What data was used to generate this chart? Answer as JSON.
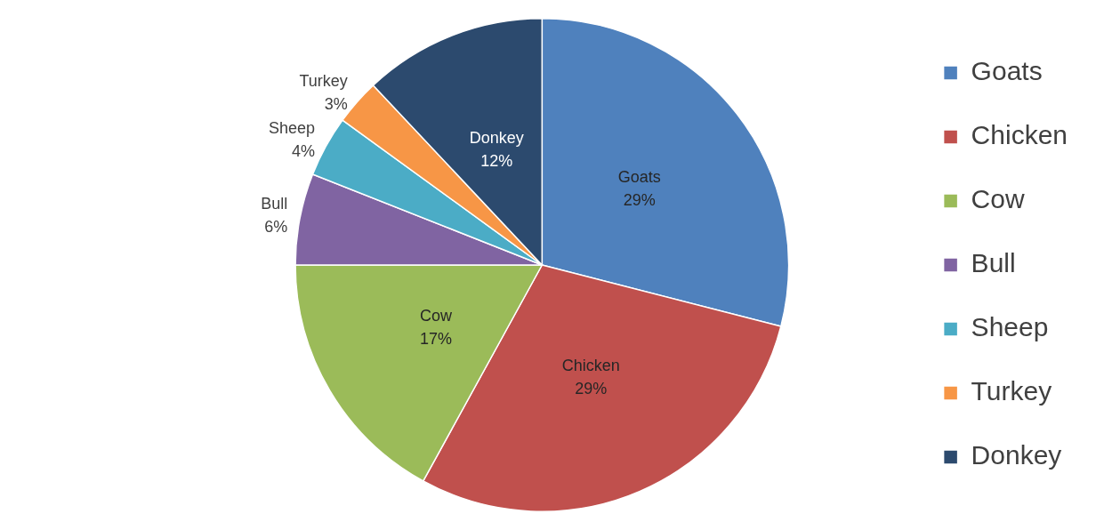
{
  "chart_data": {
    "type": "pie",
    "categories": [
      "Goats",
      "Chicken",
      "Cow",
      "Bull",
      "Sheep",
      "Turkey",
      "Donkey"
    ],
    "values": [
      29,
      29,
      17,
      6,
      4,
      3,
      12
    ],
    "value_labels": [
      "29%",
      "29%",
      "17%",
      "6%",
      "4%",
      "3%",
      "12%"
    ],
    "colors": [
      "#4f81bd",
      "#c0504d",
      "#9bbb59",
      "#8064a2",
      "#4bacc6",
      "#f79646",
      "#2c4a6e"
    ],
    "legend": "right"
  }
}
